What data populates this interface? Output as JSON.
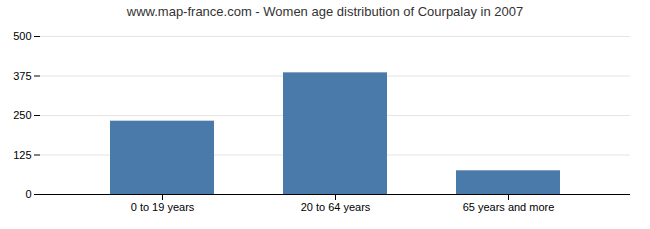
{
  "chart_data": {
    "type": "bar",
    "title": "www.map-france.com - Women age distribution of Courpalay in 2007",
    "categories": [
      "0 to 19 years",
      "20 to 64 years",
      "65 years and more"
    ],
    "values": [
      232,
      385,
      75
    ],
    "color": "#4a7aaa",
    "ylim": [
      0,
      500
    ],
    "yticks": [
      0,
      125,
      250,
      375,
      500
    ],
    "grid": true
  }
}
